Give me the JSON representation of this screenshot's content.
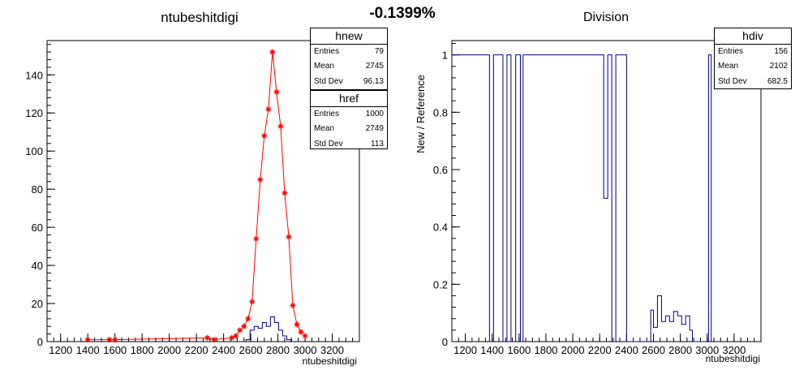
{
  "header": {
    "percent_label": "-0.1399%"
  },
  "chart_data": [
    {
      "type": "histogram",
      "title": "ntubeshitdigi",
      "xlabel": "ntubeshitdigi",
      "ylabel": "",
      "xlim": [
        1100,
        3400
      ],
      "ylim": [
        0,
        158
      ],
      "xticks": [
        "1200",
        "1400",
        "1600",
        "1800",
        "2000",
        "2200",
        "2400",
        "2600",
        "2800",
        "3000",
        "3200"
      ],
      "yticks": [
        "0",
        "20",
        "40",
        "60",
        "80",
        "100",
        "120",
        "140"
      ],
      "colors": {
        "href": "#ff0000",
        "hnew": "#000080"
      },
      "series": [
        {
          "name": "href",
          "style": "line+star-markers",
          "x": [
            1400,
            1560,
            1600,
            2280,
            2330,
            2460,
            2490,
            2520,
            2550,
            2580,
            2610,
            2640,
            2670,
            2700,
            2730,
            2760,
            2790,
            2820,
            2850,
            2880,
            2910,
            2940,
            2970,
            3000
          ],
          "values": [
            1,
            1,
            1,
            2,
            1,
            2,
            3,
            6,
            8,
            12,
            21,
            54,
            85,
            108,
            122,
            152,
            131,
            113,
            78,
            55,
            19,
            9,
            5,
            3
          ]
        },
        {
          "name": "hnew",
          "style": "steps",
          "x": [
            2580,
            2610,
            2640,
            2670,
            2700,
            2730,
            2760,
            2790,
            2820,
            2850,
            2880
          ],
          "values": [
            1,
            6,
            8,
            7,
            10,
            8,
            13,
            10,
            6,
            3,
            1
          ]
        }
      ],
      "stats_boxes": [
        {
          "title": "hnew",
          "rows": [
            {
              "label": "Entries",
              "value": "79"
            },
            {
              "label": "Mean",
              "value": "2745"
            },
            {
              "label": "Std Dev",
              "value": "96.13"
            }
          ]
        },
        {
          "title": "href",
          "rows": [
            {
              "label": "Entries",
              "value": "1000"
            },
            {
              "label": "Mean",
              "value": "2749"
            },
            {
              "label": "Std Dev",
              "value": "113"
            }
          ]
        }
      ]
    },
    {
      "type": "histogram",
      "title": "Division",
      "xlabel": "ntubeshitdigi",
      "ylabel": "New / Reference",
      "xlim": [
        1100,
        3400
      ],
      "ylim": [
        0,
        1.05
      ],
      "xticks": [
        "1200",
        "1400",
        "1600",
        "1800",
        "2000",
        "2200",
        "2400",
        "2600",
        "2800",
        "3000",
        "3200"
      ],
      "yticks": [
        "0",
        "0.2",
        "0.4",
        "0.6",
        "0.8",
        "1"
      ],
      "colors": {
        "hdiv": "#000080"
      },
      "series": [
        {
          "name": "hdiv",
          "style": "steps",
          "bins": [
            [
              1100,
              1380,
              1
            ],
            [
              1380,
              1410,
              0
            ],
            [
              1410,
              1480,
              1
            ],
            [
              1480,
              1510,
              0
            ],
            [
              1510,
              1540,
              1
            ],
            [
              1540,
              1575,
              0
            ],
            [
              1575,
              1610,
              1
            ],
            [
              1610,
              1630,
              0
            ],
            [
              1630,
              2230,
              1
            ],
            [
              2230,
              2260,
              0.5
            ],
            [
              2260,
              2290,
              1
            ],
            [
              2290,
              2320,
              0
            ],
            [
              2320,
              2400,
              1
            ],
            [
              2400,
              2580,
              0
            ],
            [
              2580,
              2600,
              0.11
            ],
            [
              2600,
              2630,
              0.05
            ],
            [
              2630,
              2660,
              0.16
            ],
            [
              2660,
              2690,
              0.07
            ],
            [
              2690,
              2720,
              0.09
            ],
            [
              2720,
              2750,
              0.07
            ],
            [
              2750,
              2780,
              0.105
            ],
            [
              2780,
              2810,
              0.09
            ],
            [
              2810,
              2840,
              0.06
            ],
            [
              2840,
              2870,
              0.09
            ],
            [
              2870,
              2890,
              0.04
            ],
            [
              2890,
              3010,
              0
            ],
            [
              3010,
              3030,
              1
            ],
            [
              3030,
              3040,
              0
            ]
          ]
        }
      ],
      "stats_boxes": [
        {
          "title": "hdiv",
          "rows": [
            {
              "label": "Entries",
              "value": "156"
            },
            {
              "label": "Mean",
              "value": "2102"
            },
            {
              "label": "Std Dev",
              "value": "682.5"
            }
          ]
        }
      ]
    }
  ]
}
